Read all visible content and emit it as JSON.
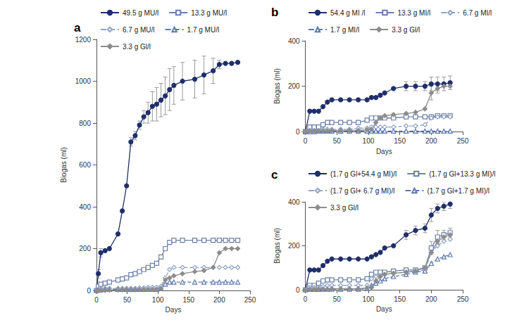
{
  "chart_data": [
    {
      "type": "line",
      "title": "a",
      "x_label": "Days",
      "y_label": "Biogas (ml)",
      "grid": false,
      "xlim": [
        0,
        250
      ],
      "xticks": [
        0,
        50,
        100,
        150,
        200,
        250
      ],
      "ylim": [
        0,
        1200
      ],
      "yticks": [
        0,
        200,
        400,
        600,
        800,
        1000,
        1200
      ],
      "x": [
        0,
        3,
        7,
        14,
        21,
        35,
        42,
        49,
        56,
        63,
        70,
        77,
        84,
        91,
        98,
        105,
        112,
        119,
        126,
        140,
        160,
        175,
        190,
        200,
        210,
        220,
        230
      ],
      "series": [
        {
          "name": "49.5 g MU/l",
          "color": "#1f2f6b",
          "marker": "circle",
          "line_style": "solid",
          "values": [
            0,
            80,
            180,
            190,
            200,
            270,
            380,
            500,
            710,
            740,
            790,
            830,
            850,
            880,
            890,
            910,
            930,
            960,
            980,
            1000,
            1010,
            1030,
            1050,
            1080,
            1085,
            1085,
            1090
          ],
          "errors": [
            null,
            20,
            20,
            null,
            null,
            null,
            null,
            null,
            20,
            20,
            20,
            30,
            50,
            70,
            80,
            80,
            90,
            100,
            90,
            90,
            90,
            90,
            60,
            20,
            null,
            null,
            null
          ]
        },
        {
          "name": "13.3 g MU/l",
          "color": "#6b7fa8",
          "marker": "square_open",
          "line_style": "solid",
          "values": [
            0,
            20,
            30,
            35,
            40,
            50,
            55,
            60,
            75,
            80,
            90,
            100,
            110,
            120,
            130,
            160,
            200,
            230,
            240,
            240,
            240,
            240,
            240,
            240,
            240,
            240,
            240
          ]
        },
        {
          "name": "6.7 g MU/l",
          "color": "#8fa3c4",
          "marker": "diamond_open",
          "line_style": "dashed",
          "values": [
            0,
            5,
            8,
            10,
            10,
            10,
            10,
            10,
            10,
            10,
            12,
            12,
            15,
            15,
            15,
            20,
            60,
            100,
            110,
            110,
            110,
            110,
            110,
            110,
            110,
            110,
            110
          ]
        },
        {
          "name": "1.7 g MU/l",
          "color": "#5b78b0",
          "marker": "triangle_open",
          "line_style": "dashed",
          "values": [
            0,
            2,
            3,
            5,
            5,
            5,
            5,
            5,
            5,
            5,
            5,
            5,
            5,
            5,
            5,
            10,
            30,
            40,
            40,
            40,
            40,
            40,
            40,
            40,
            40,
            40,
            40
          ]
        },
        {
          "name": "3.3 g Gl/l",
          "color": "#8c8c8c",
          "marker": "diamond",
          "line_style": "solid",
          "values": [
            0,
            0,
            0,
            0,
            2,
            2,
            3,
            3,
            3,
            3,
            4,
            4,
            5,
            5,
            5,
            10,
            50,
            60,
            70,
            80,
            90,
            95,
            110,
            180,
            200,
            200,
            200
          ]
        }
      ]
    },
    {
      "type": "line",
      "title": "b",
      "x_label": "Days",
      "y_label": "Biogas (ml)",
      "grid": false,
      "xlim": [
        0,
        250
      ],
      "xticks": [
        0,
        50,
        100,
        150,
        200,
        250
      ],
      "ylim": [
        0,
        400
      ],
      "yticks": [
        0,
        200,
        400
      ],
      "x": [
        0,
        7,
        14,
        21,
        28,
        35,
        42,
        56,
        70,
        84,
        98,
        105,
        112,
        119,
        126,
        140,
        160,
        175,
        190,
        200,
        210,
        220,
        230
      ],
      "series": [
        {
          "name": "54.4 g MI /l",
          "color": "#1f2f6b",
          "marker": "circle",
          "line_style": "solid",
          "values": [
            0,
            90,
            90,
            90,
            110,
            130,
            140,
            140,
            140,
            140,
            140,
            150,
            150,
            160,
            170,
            190,
            200,
            200,
            200,
            210,
            210,
            210,
            215
          ],
          "errors": [
            null,
            null,
            null,
            null,
            null,
            null,
            null,
            null,
            null,
            null,
            null,
            null,
            null,
            null,
            null,
            null,
            20,
            20,
            20,
            30,
            30,
            30,
            30
          ]
        },
        {
          "name": "13.3 g MI/l",
          "color": "#6b7fa8",
          "marker": "square_open",
          "line_style": "solid",
          "values": [
            0,
            20,
            20,
            20,
            30,
            40,
            40,
            40,
            40,
            40,
            50,
            60,
            60,
            60,
            60,
            60,
            65,
            65,
            65,
            65,
            70,
            70,
            70
          ]
        },
        {
          "name": "6.7 g MI/l",
          "color": "#8fa3c4",
          "marker": "diamond_open",
          "line_style": "dashed",
          "values": [
            0,
            5,
            5,
            5,
            10,
            10,
            10,
            10,
            10,
            15,
            15,
            20,
            20,
            20,
            20,
            20,
            25,
            25,
            30,
            60,
            65,
            65,
            65
          ]
        },
        {
          "name": "1.7 g MI/l",
          "color": "#5b78b0",
          "marker": "triangle_open",
          "line_style": "dashed",
          "values": [
            0,
            0,
            0,
            2,
            2,
            2,
            2,
            2,
            2,
            2,
            2,
            2,
            2,
            2,
            2,
            2,
            2,
            2,
            2,
            2,
            2,
            2,
            2
          ]
        },
        {
          "name": "3.3 g Gl/l",
          "color": "#8c8c8c",
          "marker": "diamond",
          "line_style": "solid",
          "values": [
            0,
            2,
            2,
            3,
            3,
            3,
            5,
            5,
            5,
            5,
            8,
            10,
            40,
            60,
            70,
            75,
            80,
            85,
            100,
            170,
            190,
            200,
            200
          ],
          "errors": [
            null,
            null,
            null,
            null,
            null,
            null,
            null,
            null,
            null,
            null,
            null,
            null,
            null,
            null,
            null,
            null,
            null,
            null,
            null,
            30,
            20,
            null,
            null
          ]
        }
      ]
    },
    {
      "type": "line",
      "title": "c",
      "x_label": "Days",
      "y_label": "Biogas (ml)",
      "grid": false,
      "xlim": [
        0,
        250
      ],
      "xticks": [
        0,
        50,
        100,
        150,
        200,
        250
      ],
      "ylim": [
        0,
        400
      ],
      "yticks": [
        0,
        200,
        400
      ],
      "x": [
        0,
        7,
        14,
        21,
        28,
        35,
        42,
        56,
        70,
        84,
        98,
        105,
        112,
        119,
        126,
        140,
        160,
        175,
        190,
        200,
        210,
        220,
        230
      ],
      "series": [
        {
          "name": "(1.7 g Gl+54.4 g MI)/l",
          "color": "#1f2f6b",
          "marker": "circle",
          "line_style": "solid",
          "values": [
            0,
            90,
            90,
            90,
            110,
            130,
            140,
            140,
            140,
            140,
            140,
            150,
            160,
            170,
            190,
            200,
            250,
            270,
            280,
            340,
            370,
            380,
            390
          ],
          "errors": [
            null,
            null,
            null,
            null,
            null,
            null,
            null,
            null,
            null,
            null,
            null,
            null,
            null,
            null,
            null,
            null,
            20,
            20,
            20,
            30,
            20,
            20,
            20
          ]
        },
        {
          "name": "(1.7 g Gl+13.3 g MI)/l",
          "color": "#6b7fa8",
          "marker": "square_open",
          "line_style": "solid",
          "values": [
            0,
            20,
            20,
            30,
            40,
            45,
            45,
            45,
            45,
            45,
            50,
            70,
            80,
            80,
            80,
            85,
            90,
            90,
            100,
            190,
            240,
            250,
            260
          ],
          "errors": [
            null,
            null,
            null,
            null,
            null,
            null,
            null,
            null,
            null,
            null,
            null,
            null,
            null,
            null,
            null,
            null,
            null,
            null,
            null,
            30,
            30,
            20,
            20
          ]
        },
        {
          "name": "(1.7 g Gl+ 6.7 g MI)/l",
          "color": "#8fa3c4",
          "marker": "diamond_open",
          "line_style": "dashed",
          "values": [
            0,
            10,
            10,
            10,
            15,
            20,
            20,
            20,
            20,
            20,
            20,
            50,
            60,
            65,
            70,
            75,
            80,
            85,
            90,
            170,
            200,
            220,
            230
          ]
        },
        {
          "name": "(1.7 g Gl+1.7 g MI)/l",
          "color": "#5b78b0",
          "marker": "triangle_open",
          "line_style": "dashed",
          "values": [
            0,
            2,
            2,
            2,
            3,
            3,
            3,
            3,
            3,
            3,
            5,
            20,
            30,
            40,
            50,
            60,
            70,
            80,
            85,
            120,
            140,
            150,
            160
          ]
        },
        {
          "name": "3.3 g Gl/l",
          "color": "#8c8c8c",
          "marker": "diamond",
          "line_style": "solid",
          "values": [
            0,
            2,
            2,
            3,
            3,
            3,
            5,
            5,
            5,
            5,
            8,
            10,
            40,
            60,
            70,
            75,
            80,
            85,
            100,
            170,
            220,
            240,
            250
          ]
        }
      ]
    }
  ]
}
